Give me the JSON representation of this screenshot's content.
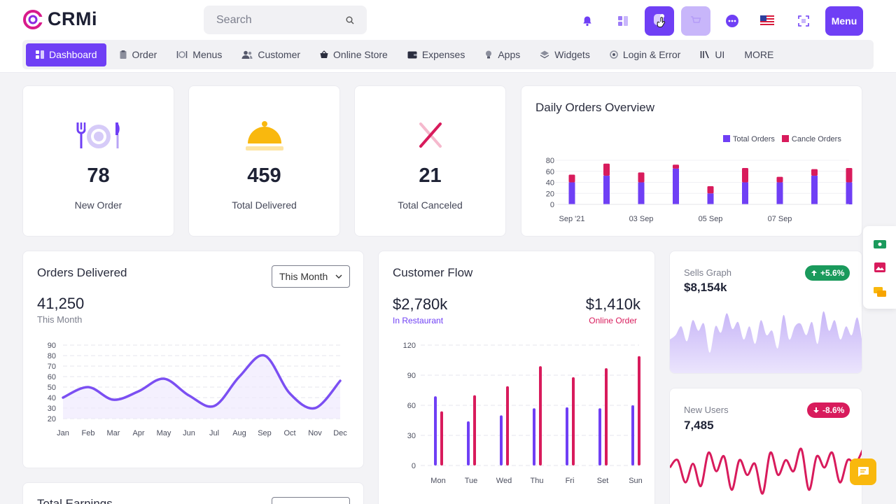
{
  "app": {
    "logo_text": "CRMi"
  },
  "search": {
    "placeholder": "Search"
  },
  "header": {
    "menu_label": "Menu"
  },
  "nav": [
    {
      "label": "Dashboard",
      "icon": "dashboard-icon"
    },
    {
      "label": "Order",
      "icon": "clipboard-icon"
    },
    {
      "label": "Menus",
      "icon": "dish-icon"
    },
    {
      "label": "Customer",
      "icon": "users-icon"
    },
    {
      "label": "Online Store",
      "icon": "basket-icon"
    },
    {
      "label": "Expenses",
      "icon": "wallet-icon"
    },
    {
      "label": "Apps",
      "icon": "bulb-icon"
    },
    {
      "label": "Widgets",
      "icon": "widgets-icon"
    },
    {
      "label": "Login & Error",
      "icon": "settings-icon"
    },
    {
      "label": "UI",
      "icon": "bars-icon"
    },
    {
      "label": "MORE",
      "icon": ""
    }
  ],
  "stats": {
    "new_order": {
      "value": "78",
      "label": "New Order"
    },
    "delivered": {
      "value": "459",
      "label": "Total Delivered"
    },
    "canceled": {
      "value": "21",
      "label": "Total Canceled"
    }
  },
  "daily_orders": {
    "title": "Daily Orders Overview",
    "legend": [
      "Total Orders",
      "Cancle Orders"
    ]
  },
  "orders_delivered": {
    "title": "Orders Delivered",
    "dropdown": "This Month",
    "value": "41,250",
    "sub": "This Month"
  },
  "customer_flow": {
    "title": "Customer Flow",
    "restaurant_value": "$2,780k",
    "restaurant_label": "In Restaurant",
    "online_value": "$1,410k",
    "online_label": "Online Order"
  },
  "sells_graph": {
    "title": "Sells Graph",
    "value": "$8,154k",
    "change": "+5.6%"
  },
  "new_users": {
    "title": "New Users",
    "value": "7,485",
    "change": "-8.6%"
  },
  "total_earnings": {
    "title": "Total Earnings"
  },
  "colors": {
    "accent": "#6f3ff5",
    "danger": "#d81b5c",
    "success": "#1a9a5c",
    "warning": "#f9b80e"
  },
  "chart_data": [
    {
      "type": "bar",
      "title": "Daily Orders Overview",
      "stacked": true,
      "categories": [
        "Sep '21",
        "",
        "03 Sep",
        "",
        "05 Sep",
        "",
        "07 Sep",
        "",
        ""
      ],
      "series": [
        {
          "name": "Total Orders",
          "values": [
            40,
            52,
            40,
            65,
            20,
            40,
            40,
            52,
            40
          ]
        },
        {
          "name": "Cancle Orders",
          "values": [
            14,
            22,
            18,
            7,
            13,
            26,
            10,
            12,
            26
          ]
        }
      ],
      "ylim": [
        0,
        80
      ],
      "yticks": [
        0,
        20,
        40,
        60,
        80
      ]
    },
    {
      "type": "line",
      "title": "Orders Delivered",
      "categories": [
        "Jan",
        "Feb",
        "Mar",
        "Apr",
        "May",
        "Jun",
        "Jul",
        "Aug",
        "Sep",
        "Oct",
        "Nov",
        "Dec"
      ],
      "series": [
        {
          "name": "",
          "values": [
            40,
            50,
            38,
            46,
            58,
            42,
            32,
            60,
            80,
            44,
            30,
            56
          ]
        }
      ],
      "ylim": [
        20,
        90
      ],
      "yticks": [
        20,
        30,
        40,
        50,
        60,
        70,
        80,
        90
      ]
    },
    {
      "type": "bar",
      "title": "Customer Flow",
      "categories": [
        "Mon",
        "Tue",
        "Wed",
        "Thu",
        "Fri",
        "Set",
        "Sun"
      ],
      "series": [
        {
          "name": "In Restaurant",
          "values": [
            69,
            44,
            50,
            57,
            58,
            57,
            60
          ]
        },
        {
          "name": "Online Order",
          "values": [
            54,
            70,
            79,
            99,
            88,
            97,
            109
          ]
        }
      ],
      "ylim": [
        0,
        120
      ],
      "yticks": [
        0,
        30,
        60,
        90,
        120
      ]
    },
    {
      "type": "area",
      "title": "Sells Graph",
      "series": [
        {
          "name": "",
          "values": [
            40,
            45,
            55,
            38,
            62,
            50,
            58,
            25,
            55,
            48,
            70,
            52,
            60,
            40,
            55,
            35,
            62,
            45,
            50,
            30,
            68,
            40,
            55,
            58,
            45,
            60,
            35,
            72,
            50,
            62,
            40,
            55,
            45,
            65,
            30
          ]
        }
      ]
    },
    {
      "type": "line",
      "title": "New Users",
      "series": [
        {
          "name": "",
          "values": [
            50,
            60,
            30,
            55,
            25,
            70,
            45,
            65,
            20,
            60,
            40,
            55,
            15,
            70,
            40,
            60,
            45,
            75,
            20,
            65,
            50,
            70,
            30,
            60,
            55,
            75
          ]
        }
      ]
    }
  ]
}
